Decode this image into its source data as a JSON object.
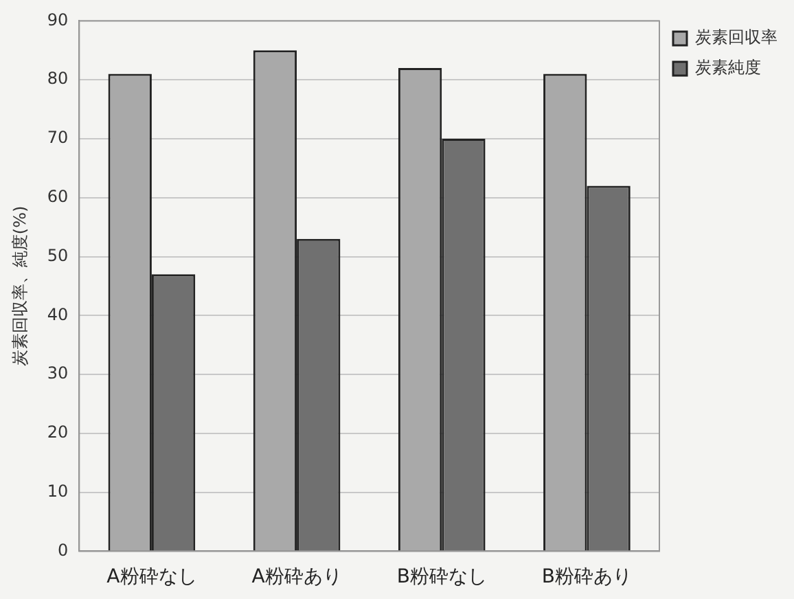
{
  "chart_data": {
    "type": "bar",
    "ylabel": "炭素回収率、純度(%)",
    "categories": [
      "A粉砕なし",
      "A粉砕あり",
      "B粉砕なし",
      "B粉砕あり"
    ],
    "series": [
      {
        "name": "炭素回収率",
        "color": "#a9a9a9",
        "values": [
          81,
          85,
          82,
          81
        ]
      },
      {
        "name": "炭素純度",
        "color": "#707070",
        "values": [
          47,
          53,
          70,
          62
        ]
      }
    ],
    "ylim": [
      0,
      90
    ],
    "yticks": [
      0,
      10,
      20,
      30,
      40,
      50,
      60,
      70,
      80,
      90
    ],
    "grid": "y",
    "legend": "right"
  }
}
